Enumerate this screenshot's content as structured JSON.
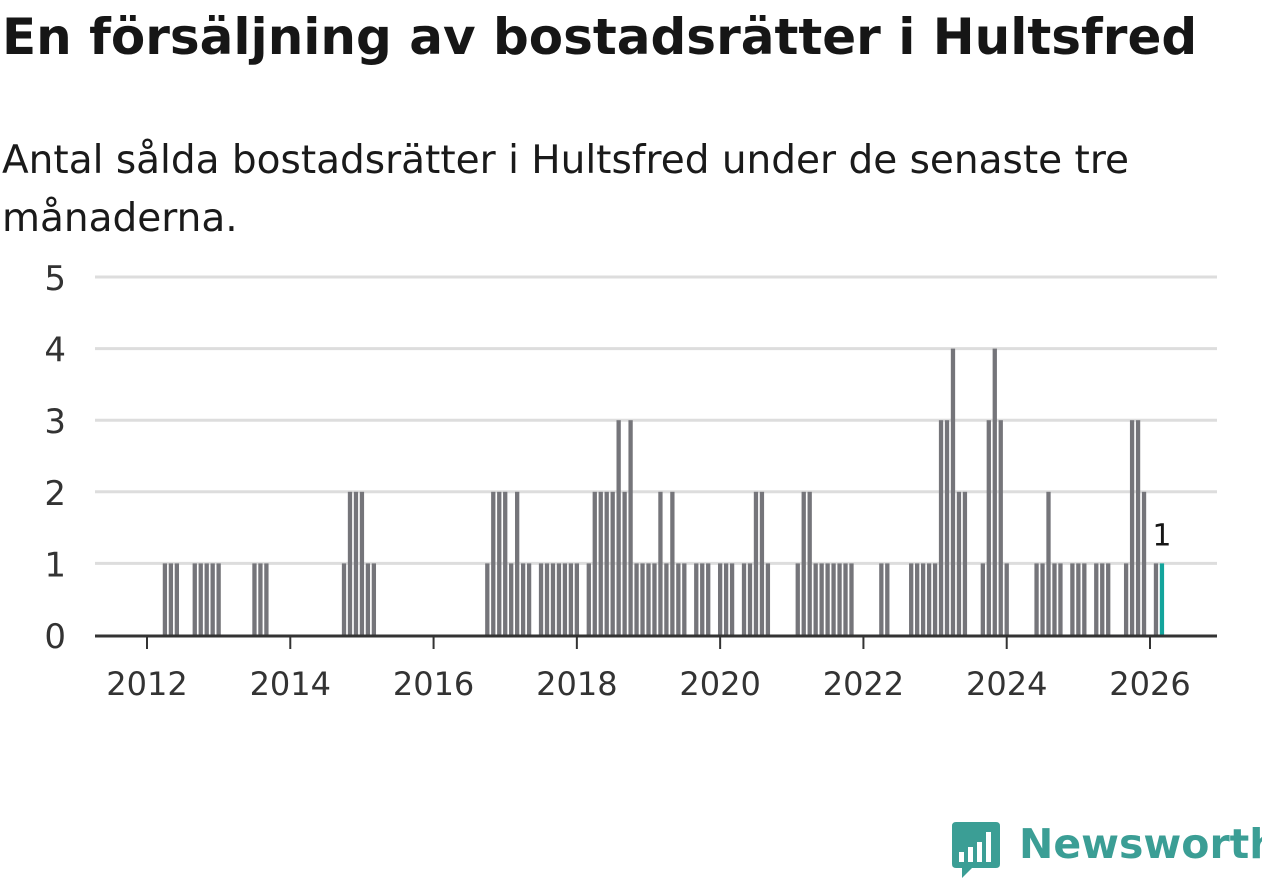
{
  "title": "En försäljning av bostadsrätter i Hultsfred",
  "subtitle": "Antal sålda bostadsrätter i Hultsfred under de senaste tre månaderna.",
  "brand": {
    "name": "Newsworthy",
    "color": "#3b9e95",
    "icon": "bar-chart-bubble-icon"
  },
  "colors": {
    "bars": "#75757a",
    "highlight": "#13a49c",
    "grid": "#dddddd",
    "axis": "#333333"
  },
  "chart_data": {
    "type": "bar",
    "ylim": [
      0,
      5
    ],
    "yticks": [
      0,
      1,
      2,
      3,
      4,
      5
    ],
    "xticks": [
      "2012",
      "2014",
      "2016",
      "2018",
      "2020",
      "2022",
      "2024",
      "2026"
    ],
    "grid": true,
    "x_start": "2011-01",
    "x_end": "2026-03",
    "values": [
      0,
      0,
      0,
      0,
      0,
      0,
      0,
      0,
      0,
      0,
      0,
      0,
      0,
      0,
      0,
      1,
      1,
      1,
      0,
      0,
      1,
      1,
      1,
      1,
      1,
      0,
      0,
      0,
      0,
      0,
      1,
      1,
      1,
      0,
      0,
      0,
      0,
      0,
      0,
      0,
      0,
      0,
      0,
      0,
      0,
      1,
      2,
      2,
      2,
      1,
      1,
      0,
      0,
      0,
      0,
      0,
      0,
      0,
      0,
      0,
      0,
      0,
      0,
      0,
      0,
      0,
      0,
      0,
      0,
      1,
      2,
      2,
      2,
      1,
      2,
      1,
      1,
      0,
      1,
      1,
      1,
      1,
      1,
      1,
      1,
      0,
      1,
      2,
      2,
      2,
      2,
      3,
      2,
      3,
      1,
      1,
      1,
      1,
      2,
      1,
      2,
      1,
      1,
      0,
      1,
      1,
      1,
      0,
      1,
      1,
      1,
      0,
      1,
      1,
      2,
      2,
      1,
      0,
      0,
      0,
      0,
      1,
      2,
      2,
      1,
      1,
      1,
      1,
      1,
      1,
      1,
      0,
      0,
      0,
      0,
      1,
      1,
      0,
      0,
      0,
      1,
      1,
      1,
      1,
      1,
      3,
      3,
      4,
      2,
      2,
      0,
      0,
      1,
      3,
      4,
      3,
      1,
      0,
      0,
      0,
      0,
      1,
      1,
      2,
      1,
      1,
      0,
      1,
      1,
      1,
      0,
      1,
      1,
      1,
      0,
      0,
      1,
      3,
      3,
      2,
      0,
      1,
      1
    ],
    "highlight_last": true,
    "annotation": "1"
  }
}
